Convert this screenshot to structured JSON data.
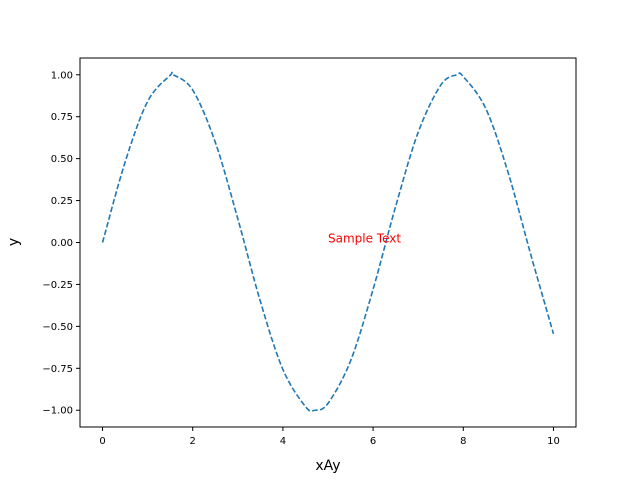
{
  "chart_data": {
    "type": "line",
    "title": "",
    "xlabel": "xAy",
    "ylabel": "y",
    "xlim": [
      -0.5,
      10.5
    ],
    "ylim": [
      -1.1,
      1.1
    ],
    "x_ticks": [
      0,
      2,
      4,
      6,
      8,
      10
    ],
    "x_tick_labels": [
      "0",
      "2",
      "4",
      "6",
      "8",
      "10"
    ],
    "y_ticks": [
      -1.0,
      -0.75,
      -0.5,
      -0.25,
      0.0,
      0.25,
      0.5,
      0.75,
      1.0
    ],
    "y_tick_labels": [
      "−1.00",
      "−0.75",
      "−0.50",
      "−0.25",
      "0.00",
      "0.25",
      "0.50",
      "0.75",
      "1.00"
    ],
    "grid": false,
    "series": [
      {
        "line_style": "dashed",
        "color": "#1f77b4",
        "x": [
          0,
          0.5,
          1,
          1.5,
          1.5708,
          2,
          2.5,
          3,
          3.5,
          4,
          4.5,
          4.7124,
          5,
          5.5,
          6,
          6.5,
          7,
          7.5,
          7.854,
          8,
          8.5,
          9,
          9.5,
          10
        ],
        "y": [
          0,
          0.479,
          0.841,
          0.997,
          1.0,
          0.909,
          0.598,
          0.141,
          -0.351,
          -0.757,
          -0.978,
          -1.0,
          -0.959,
          -0.706,
          -0.279,
          0.215,
          0.657,
          0.938,
          1.0,
          0.989,
          0.798,
          0.412,
          -0.075,
          -0.544
        ]
      }
    ],
    "annotations": [
      {
        "text": "Sample Text",
        "x": 5,
        "y": 0,
        "color": "#ff0000"
      }
    ]
  }
}
